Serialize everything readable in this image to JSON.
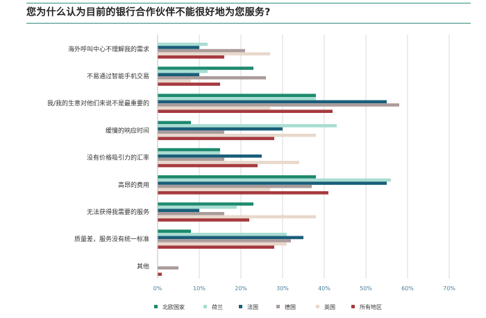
{
  "title": "您为什么认为目前的银行合作伙伴不能很好地为您服务?",
  "chart_data": {
    "type": "bar",
    "orientation": "horizontal",
    "title": "您为什么认为目前的银行合作伙伴不能很好地为您服务?",
    "categories": [
      "海外呼叫中心不理解我的需求",
      "不易通过智能手机交易",
      "我/我的生意对他们来说不是最重要的",
      "缓慢的响应时间",
      "没有价格吸引力的汇率",
      "高昂的费用",
      "无法获得我需要的服务",
      "质量差，服务没有统一标准",
      "其他"
    ],
    "series": [
      {
        "name": "北欧国家",
        "color": "#1e8a6e",
        "values": [
          0,
          23,
          38,
          8,
          15,
          38,
          23,
          8,
          0
        ]
      },
      {
        "name": "荷兰",
        "color": "#a8ddd2",
        "values": [
          12,
          12,
          38,
          43,
          15,
          56,
          19,
          31,
          0
        ]
      },
      {
        "name": "法国",
        "color": "#1a5e7a",
        "values": [
          10,
          10,
          55,
          30,
          25,
          55,
          10,
          35,
          0
        ]
      },
      {
        "name": "德国",
        "color": "#ab9b9b",
        "values": [
          21,
          26,
          58,
          16,
          16,
          37,
          16,
          32,
          5
        ]
      },
      {
        "name": "英国",
        "color": "#e8d8cc",
        "values": [
          27,
          8,
          27,
          38,
          34,
          27,
          38,
          31,
          0
        ]
      },
      {
        "name": "所有地区",
        "color": "#a63a3f",
        "values": [
          16,
          15,
          42,
          28,
          24,
          41,
          22,
          28,
          1
        ]
      }
    ],
    "xlim": [
      0,
      70
    ],
    "ticks": [
      "0%",
      "10%",
      "20%",
      "30%",
      "40%",
      "50%",
      "60%",
      "70%"
    ],
    "grid": true,
    "legend_position": "bottom"
  }
}
